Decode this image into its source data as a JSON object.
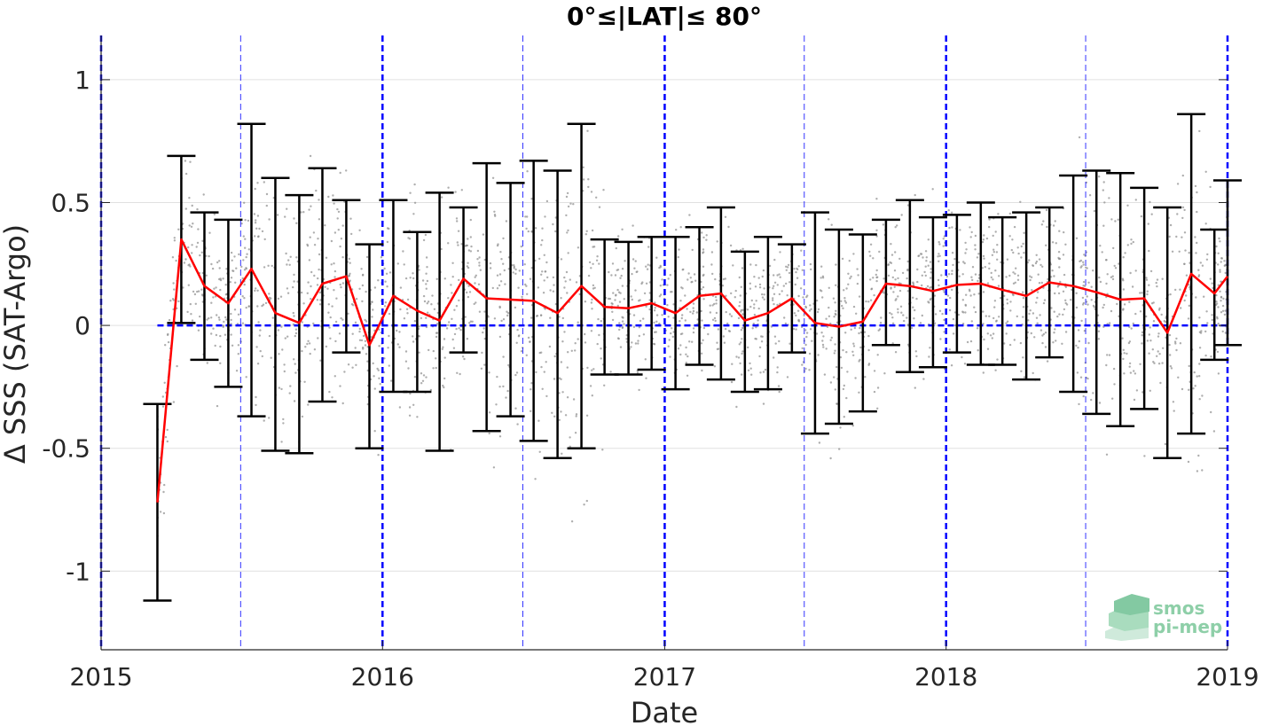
{
  "chart_data": {
    "type": "line",
    "title": "0°≤|LAT|≤ 80°",
    "xlabel": "Date",
    "ylabel": "Δ SSS (SAT-Argo)",
    "xlim": [
      "2015-01-01",
      "2019-01-01"
    ],
    "ylim": [
      -1.32,
      1.18
    ],
    "x_tick_labels": [
      "2015",
      "2016",
      "2017",
      "2018",
      "2019"
    ],
    "y_ticks": [
      -1,
      -0.5,
      0,
      0.5,
      1
    ],
    "y_tick_labels": [
      "-1",
      "-0.5",
      "0",
      "0.5",
      "1"
    ],
    "grid": true,
    "zero_line": 0,
    "year_lines": [
      "2015-01-01",
      "2016-01-01",
      "2017-01-01",
      "2018-01-01",
      "2019-01-01"
    ],
    "half_year_lines": [
      "2015-07-01",
      "2016-07-01",
      "2017-07-01",
      "2018-07-01"
    ],
    "colors": {
      "mean_line": "#ff0000",
      "error_bars": "#000000",
      "scatter": "#8c8c8c",
      "reference_lines": "#0000ff",
      "grid": "#e0e0e0"
    },
    "series": [
      {
        "x": [
          "2015-03-15",
          "2015-04-15",
          "2015-05-15",
          "2015-06-15",
          "2015-07-15",
          "2015-08-15",
          "2015-09-15",
          "2015-10-15",
          "2015-11-15",
          "2015-12-15",
          "2016-01-15",
          "2016-02-15",
          "2016-03-15",
          "2016-04-15",
          "2016-05-15",
          "2016-06-15",
          "2016-07-15",
          "2016-08-15",
          "2016-09-15",
          "2016-10-15",
          "2016-11-15",
          "2016-12-15",
          "2017-01-15",
          "2017-02-15",
          "2017-03-15",
          "2017-04-15",
          "2017-05-15",
          "2017-06-15",
          "2017-07-15",
          "2017-08-15",
          "2017-09-15",
          "2017-10-15",
          "2017-11-15",
          "2017-12-15",
          "2018-01-15",
          "2018-02-15",
          "2018-03-15",
          "2018-04-15",
          "2018-05-15",
          "2018-06-15",
          "2018-07-15",
          "2018-08-15",
          "2018-09-15",
          "2018-10-15",
          "2018-11-15",
          "2018-12-15",
          "2019-01-01"
        ],
        "mean": [
          -0.72,
          0.35,
          0.16,
          0.09,
          0.23,
          0.05,
          0.01,
          0.17,
          0.2,
          -0.08,
          0.12,
          0.06,
          0.02,
          0.19,
          0.11,
          0.105,
          0.1,
          0.05,
          0.16,
          0.075,
          0.07,
          0.09,
          0.05,
          0.12,
          0.13,
          0.02,
          0.05,
          0.11,
          0.01,
          -0.005,
          0.015,
          0.17,
          0.16,
          0.14,
          0.165,
          0.17,
          0.145,
          0.12,
          0.175,
          0.16,
          0.135,
          0.105,
          0.11,
          -0.03,
          0.21,
          0.13,
          0.2
        ],
        "upper": [
          -0.32,
          0.69,
          0.46,
          0.43,
          0.82,
          0.6,
          0.53,
          0.64,
          0.51,
          0.33,
          0.51,
          0.38,
          0.54,
          0.48,
          0.66,
          0.58,
          0.67,
          0.63,
          0.82,
          0.35,
          0.34,
          0.36,
          0.36,
          0.4,
          0.48,
          0.3,
          0.36,
          0.33,
          0.46,
          0.39,
          0.37,
          0.43,
          0.51,
          0.44,
          0.45,
          0.5,
          0.44,
          0.46,
          0.48,
          0.61,
          0.63,
          0.62,
          0.56,
          0.48,
          0.86,
          0.39,
          0.59
        ],
        "lower": [
          -1.12,
          0.01,
          -0.14,
          -0.25,
          -0.37,
          -0.51,
          -0.52,
          -0.31,
          -0.11,
          -0.5,
          -0.27,
          -0.27,
          -0.51,
          -0.11,
          -0.43,
          -0.37,
          -0.47,
          -0.54,
          -0.5,
          -0.2,
          -0.2,
          -0.18,
          -0.26,
          -0.16,
          -0.22,
          -0.27,
          -0.26,
          -0.11,
          -0.44,
          -0.4,
          -0.35,
          -0.08,
          -0.19,
          -0.17,
          -0.11,
          -0.16,
          -0.16,
          -0.22,
          -0.13,
          -0.27,
          -0.36,
          -0.41,
          -0.34,
          -0.54,
          -0.44,
          -0.14,
          -0.08
        ]
      }
    ]
  },
  "logo": {
    "line1": "smos",
    "line2": "pi-mep"
  }
}
